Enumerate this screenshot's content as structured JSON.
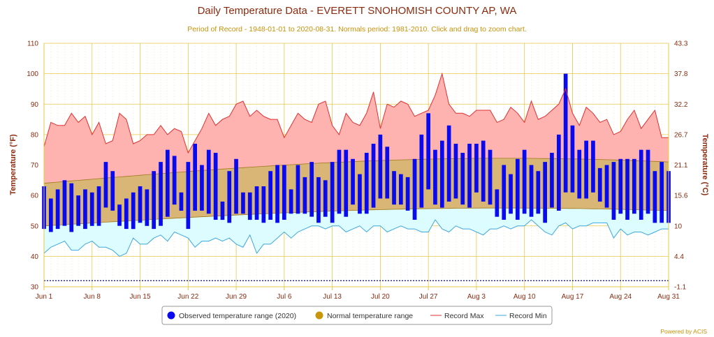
{
  "chart_data": {
    "type": "bar",
    "title": "Daily Temperature Data - EVERETT SNOHOMISH COUNTY AP, WA",
    "subtitle": "Period of Record - 1948-01-01 to 2020-08-31. Normals period: 1981-2010. Click and drag to zoom chart.",
    "ylabel_left": "Temperature (°F)",
    "ylabel_right": "Temperature (°C)",
    "ylim": [
      30,
      110
    ],
    "yticks_left": [
      "30",
      "40",
      "50",
      "60",
      "70",
      "80",
      "90",
      "100",
      "110"
    ],
    "yticks_right": [
      "-1.1",
      "4.4",
      "10",
      "15.6",
      "21.1",
      "26.7",
      "32.2",
      "37.8",
      "43.3"
    ],
    "xticks": [
      "Jun 1",
      "Jun 8",
      "Jun 15",
      "Jun 22",
      "Jun 29",
      "Jul 6",
      "Jul 13",
      "Jul 20",
      "Jul 27",
      "Aug 3",
      "Aug 10",
      "Aug 17",
      "Aug 24",
      "Aug 31"
    ],
    "xtick_index": [
      0,
      7,
      14,
      21,
      28,
      35,
      42,
      49,
      56,
      63,
      70,
      77,
      84,
      91
    ],
    "freeze_line": 32,
    "series": [
      {
        "name": "Observed temperature range (2020)",
        "color": "#0a0aef",
        "high": [
          63,
          59,
          62,
          65,
          64,
          60,
          62,
          61,
          63,
          71,
          68,
          57,
          59,
          61,
          63,
          62,
          68,
          71,
          75,
          73,
          61,
          71,
          77,
          70,
          75,
          74,
          58,
          68,
          72,
          61,
          61,
          63,
          63,
          68,
          70,
          70,
          62,
          70,
          66,
          71,
          66,
          65,
          71,
          75,
          75,
          72,
          67,
          74,
          77,
          80,
          76,
          68,
          67,
          66,
          72,
          80,
          87,
          75,
          78,
          83,
          77,
          74,
          77,
          77,
          78,
          75,
          62,
          70,
          67,
          72,
          75,
          70,
          68,
          71,
          74,
          80,
          100,
          83,
          75,
          78,
          78,
          69,
          70,
          71,
          72,
          72,
          72,
          75,
          75,
          68,
          71,
          68
        ],
        "low": [
          49,
          48,
          49,
          50,
          48,
          50,
          49,
          50,
          50,
          56,
          55,
          50,
          49,
          49,
          51,
          50,
          49,
          50,
          53,
          57,
          55,
          49,
          55,
          55,
          54,
          52,
          52,
          51,
          54,
          54,
          52,
          52,
          51,
          52,
          51,
          52,
          54,
          54,
          54,
          53,
          51,
          53,
          51,
          54,
          53,
          57,
          54,
          54,
          56,
          59,
          59,
          57,
          57,
          55,
          52,
          56,
          62,
          57,
          56,
          58,
          59,
          57,
          56,
          61,
          58,
          57,
          53,
          52,
          54,
          52,
          54,
          53,
          54,
          51,
          56,
          55,
          61,
          61,
          59,
          59,
          61,
          58,
          56,
          52,
          54,
          52,
          54,
          52,
          54,
          51,
          51,
          51
        ]
      },
      {
        "name": "Normal temperature range",
        "color": "#c8960c",
        "high_start": 64,
        "high_end": 71,
        "low_start": 50,
        "low_end": 55
      },
      {
        "name": "Record Max",
        "color": "#e03030",
        "values": [
          76,
          84,
          83,
          83,
          87,
          84,
          86,
          80,
          84,
          77,
          78,
          87,
          85,
          77,
          78,
          80,
          80,
          83,
          80,
          82,
          81,
          74,
          78,
          82,
          87,
          83,
          85,
          86,
          90,
          91,
          86,
          88,
          86,
          85,
          85,
          79,
          83,
          87,
          85,
          84,
          90,
          91,
          83,
          80,
          87,
          84,
          83,
          87,
          94,
          82,
          90,
          89,
          91,
          90,
          86,
          87,
          88,
          93,
          100,
          90,
          87,
          87,
          86,
          88,
          88,
          88,
          84,
          85,
          89,
          87,
          84,
          91,
          85,
          86,
          88,
          90,
          95,
          87,
          83,
          89,
          87,
          84,
          85,
          80,
          81,
          85,
          88,
          82,
          85,
          88,
          79,
          79
        ]
      },
      {
        "name": "Record Min",
        "color": "#3da7e0",
        "values": [
          41,
          43,
          44,
          45,
          42,
          42,
          44,
          45,
          43,
          43,
          42,
          40,
          41,
          46,
          44,
          44,
          46,
          47,
          45,
          48,
          47,
          46,
          43,
          45,
          45,
          46,
          45,
          46,
          44,
          43,
          47,
          41,
          44,
          44,
          46,
          48,
          46,
          48,
          49,
          50,
          50,
          49,
          50,
          50,
          48,
          49,
          50,
          48,
          50,
          50,
          48,
          49,
          50,
          49,
          49,
          48,
          48,
          52,
          49,
          48,
          50,
          49,
          49,
          48,
          47,
          49,
          49,
          50,
          49,
          50,
          50,
          52,
          50,
          48,
          47,
          50,
          51,
          49,
          50,
          50,
          51,
          51,
          51,
          46,
          49,
          47,
          48,
          48,
          47,
          48,
          49,
          49
        ]
      }
    ],
    "legend": [
      "Observed temperature range (2020)",
      "Normal temperature range",
      "Record Max",
      "Record Min"
    ],
    "credit": "Powered by ACIS"
  }
}
